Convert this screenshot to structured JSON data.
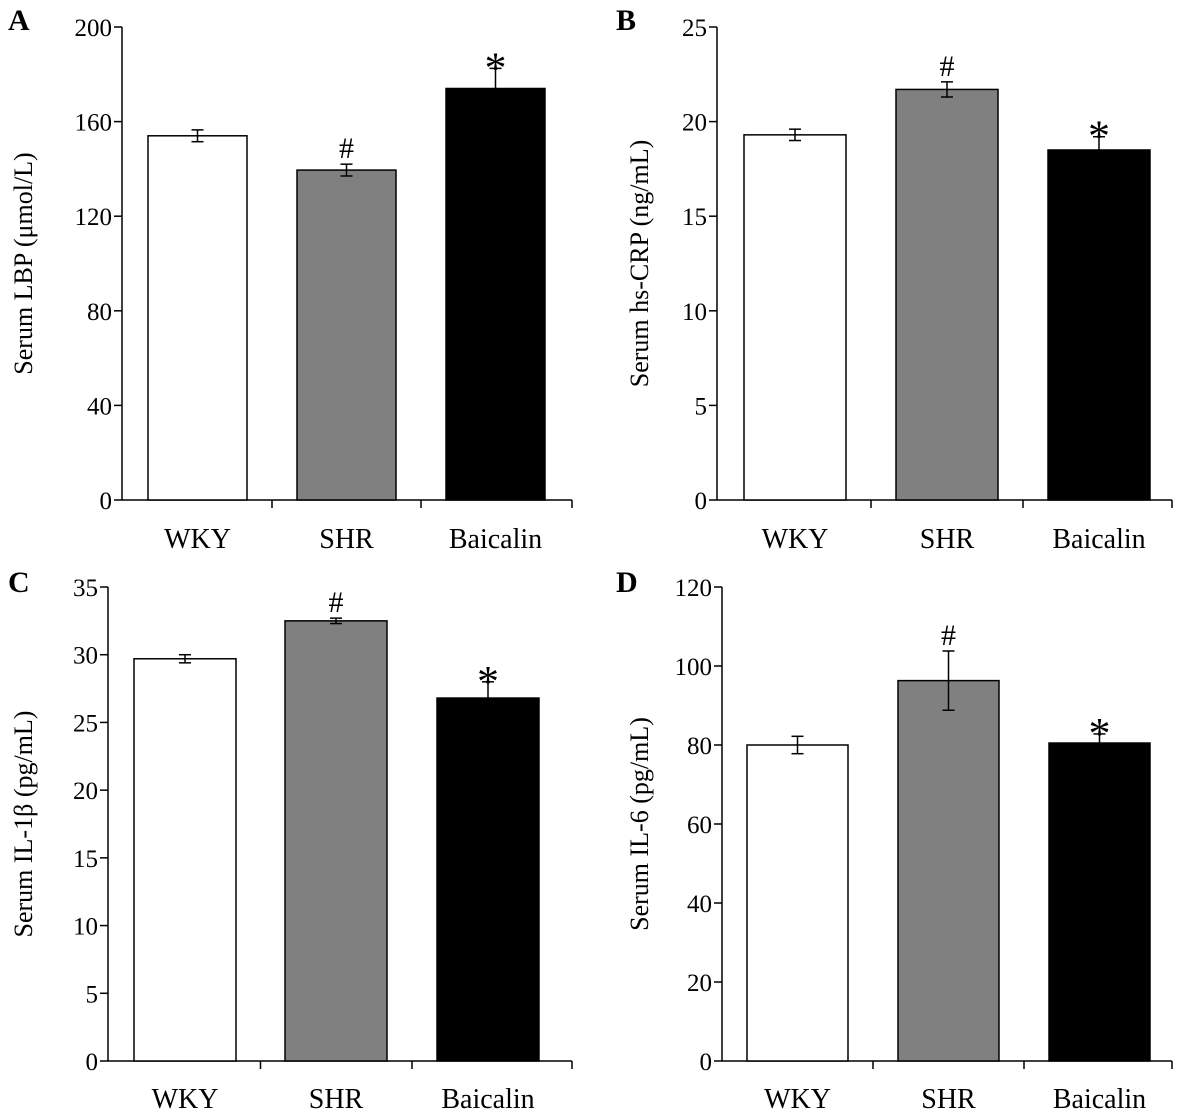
{
  "figure": {
    "colors": {
      "WKY": "#ffffff",
      "SHR": "#808080",
      "Baicalin": "#000000",
      "stroke": "#000000"
    }
  },
  "chart_data": [
    {
      "type": "bar",
      "panel": "A",
      "categories": [
        "WKY",
        "SHR",
        "Baicalin"
      ],
      "values": [
        154,
        139.5,
        174
      ],
      "errors": [
        2.5,
        2.5,
        8.5
      ],
      "significance": [
        "",
        "#",
        "*"
      ],
      "ylabel": "Serum LBP (μmol/L)",
      "ylim": [
        0,
        200
      ],
      "yticks": [
        0,
        40,
        80,
        120,
        160,
        200
      ]
    },
    {
      "type": "bar",
      "panel": "B",
      "categories": [
        "WKY",
        "SHR",
        "Baicalin"
      ],
      "values": [
        19.3,
        21.7,
        18.5
      ],
      "errors": [
        0.3,
        0.4,
        0.7
      ],
      "significance": [
        "",
        "#",
        "*"
      ],
      "ylabel": "Serum hs-CRP (ng/mL)",
      "ylim": [
        0,
        25
      ],
      "yticks": [
        0,
        5,
        10,
        15,
        20,
        25
      ]
    },
    {
      "type": "bar",
      "panel": "C",
      "categories": [
        "WKY",
        "SHR",
        "Baicalin"
      ],
      "values": [
        29.7,
        32.5,
        26.8
      ],
      "errors": [
        0.3,
        0.2,
        1.2
      ],
      "significance": [
        "",
        "#",
        "*"
      ],
      "ylabel": "Serum IL-1β (pg/mL)",
      "ylim": [
        0,
        35
      ],
      "yticks": [
        0,
        5,
        10,
        15,
        20,
        25,
        30,
        35
      ]
    },
    {
      "type": "bar",
      "panel": "D",
      "categories": [
        "WKY",
        "SHR",
        "Baicalin"
      ],
      "values": [
        80,
        96.3,
        80.5
      ],
      "errors": [
        2.2,
        7.5,
        2.3
      ],
      "significance": [
        "",
        "#",
        "*"
      ],
      "ylabel": "Serum IL-6 (pg/mL)",
      "ylim": [
        0,
        120
      ],
      "yticks": [
        0,
        20,
        40,
        60,
        80,
        100,
        120
      ]
    }
  ]
}
